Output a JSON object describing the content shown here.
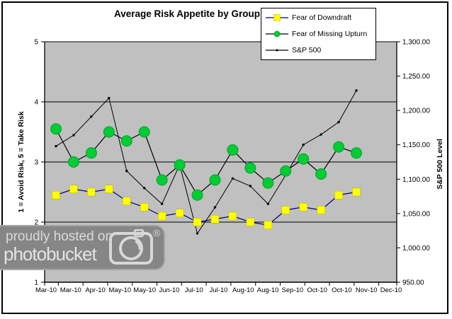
{
  "chart_data": {
    "type": "line",
    "title": "Average Risk Appetite by Group",
    "plot_bg_color": "#C0C0C0",
    "grid_color": "#000000",
    "legend_position": "top-right",
    "x_tick_labels": [
      "Mar-10",
      "Mar-10",
      "Apr-10",
      "May-10",
      "May-10",
      "Jun-10",
      "Jul-10",
      "Jul-10",
      "Aug-10",
      "Aug-10",
      "Sep-10",
      "Oct-10",
      "Oct-10",
      "Nov-10",
      "Dec-10"
    ],
    "left_axis": {
      "title": "1 = Avoid Risk, 5 = Take Risk",
      "min": 1,
      "max": 5,
      "tick_values": [
        1,
        2,
        3,
        4,
        5
      ],
      "tick_labels": [
        "1",
        "2",
        "3",
        "4",
        "5"
      ]
    },
    "right_axis": {
      "title": "S&P 500 Level",
      "min": 950,
      "max": 1300,
      "tick_step": 50,
      "tick_labels": [
        "950.00",
        "1,000.00",
        "1,050.00",
        "1,100.00",
        "1,150.00",
        "1,200.00",
        "1,250.00",
        "1,300.00"
      ]
    },
    "grid_values": [
      2,
      3,
      4,
      5
    ],
    "series": [
      {
        "name": "Fear of Downdraft",
        "axis": "left",
        "marker": "square",
        "marker_color": "#FFFF00",
        "line_color": "#000080",
        "values": [
          2.45,
          2.55,
          2.5,
          2.55,
          2.35,
          2.25,
          2.1,
          2.15,
          2.0,
          2.05,
          2.1,
          2.0,
          1.95,
          2.2,
          2.25,
          2.2,
          2.45,
          2.5
        ]
      },
      {
        "name": "Fear of Missing Upturn",
        "axis": "left",
        "marker": "circle",
        "marker_color": "#00CC33",
        "line_color": "#000000",
        "values": [
          3.55,
          3.0,
          3.15,
          3.5,
          3.35,
          3.5,
          2.7,
          2.95,
          2.45,
          2.7,
          3.2,
          2.9,
          2.65,
          2.85,
          3.05,
          2.8,
          3.25,
          3.15
        ]
      },
      {
        "name": "S&P 500",
        "axis": "right",
        "marker": "dot",
        "marker_color": "#000000",
        "line_color": "#000000",
        "values": [
          1148,
          1164,
          1191,
          1218,
          1112,
          1087,
          1064,
          1121,
          1021,
          1059,
          1101,
          1090,
          1064,
          1106,
          1150,
          1165,
          1183,
          1229
        ]
      }
    ]
  },
  "watermark": {
    "line1": "proudly hosted on",
    "line2": "photobucket",
    "registered_mark": "®"
  }
}
